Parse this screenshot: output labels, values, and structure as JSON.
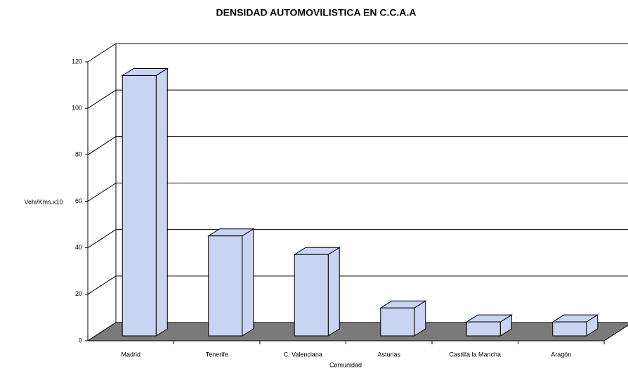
{
  "chart_data": {
    "type": "bar3d",
    "title": "DENSIDAD AUTOMOVILISTICA EN C.C.A.A",
    "y_label": "Vehi/Kms.x10",
    "x_label": "Comunidad",
    "categories": [
      "Madrid",
      "Tenerife",
      "C. Valenciana",
      "Asturias",
      "Castilla la Mancha",
      "Aragón"
    ],
    "values": [
      112,
      43,
      35,
      12,
      6,
      6
    ],
    "color": "#c9d3f2",
    "ylim": [
      0,
      120
    ],
    "yticks": [
      0,
      20,
      40,
      60,
      80,
      100,
      120
    ],
    "grid": true
  }
}
